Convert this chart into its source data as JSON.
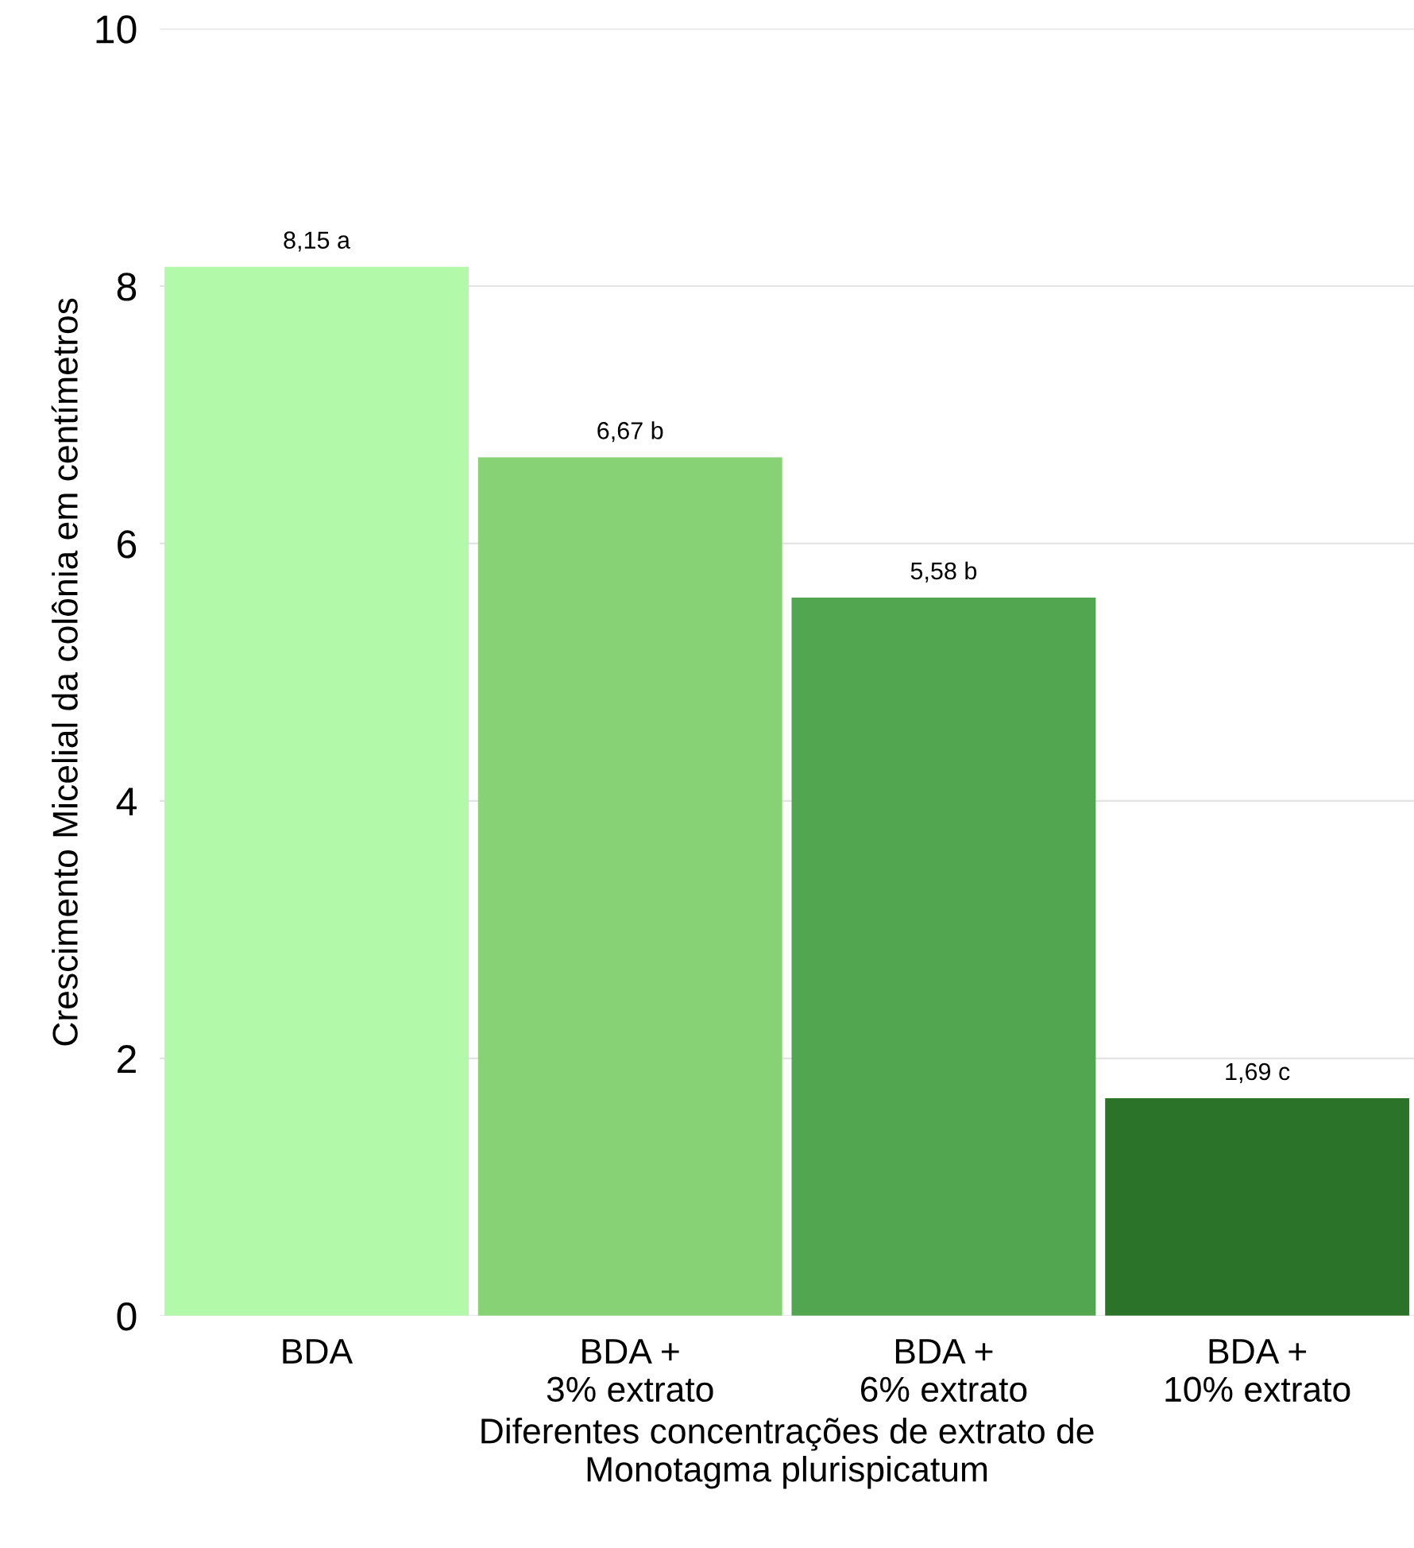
{
  "chart_data": {
    "type": "bar",
    "xlabel": "Diferentes concentrações de extrato de\nMonotagma plurispicatum",
    "ylabel": "Crescimento Micelial da colônia em centímetros",
    "categories": [
      "BDA",
      "BDA +\n3% extrato",
      "BDA +\n6% extrato",
      "BDA +\n10% extrato"
    ],
    "values": [
      8.15,
      6.67,
      5.58,
      1.69
    ],
    "colors": [
      "#b2f9aa",
      "#88d276",
      "#52a64f",
      "#2b7329"
    ],
    "value_labels": [
      "8,15 a",
      "6,67 b",
      "5,58 b",
      "1,69 c"
    ],
    "ylim": [
      0,
      10
    ],
    "yticks": [
      0,
      2,
      4,
      6,
      8,
      10
    ],
    "grid": "y",
    "legend": false
  }
}
